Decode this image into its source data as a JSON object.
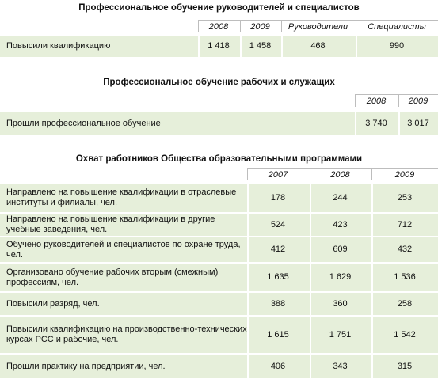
{
  "tables": [
    {
      "title": "Профессиональное обучение руководителей и специалистов",
      "headers": [
        "2008",
        "2009",
        "Руководители",
        "Специалисты"
      ],
      "rows": [
        {
          "label": "Повысили квалификацию",
          "values": [
            "1 418",
            "1 458",
            "468",
            "990"
          ]
        }
      ]
    },
    {
      "title": "Профессиональное обучение рабочих и служащих",
      "headers": [
        "2008",
        "2009"
      ],
      "rows": [
        {
          "label": "Прошли профессиональное обучение",
          "values": [
            "3 740",
            "3 017"
          ]
        }
      ]
    },
    {
      "title": "Охват работников Общества образовательными программами",
      "headers": [
        "2007",
        "2008",
        "2009"
      ],
      "rows": [
        {
          "label": "Направлено на повышение квалификации в отраслевые институты и филиалы, чел.",
          "values": [
            "178",
            "244",
            "253"
          ]
        },
        {
          "label": "Направлено на повышение квалификации в другие учебные заведения, чел.",
          "values": [
            "524",
            "423",
            "712"
          ]
        },
        {
          "label": "Обучено руководителей и специалистов по охране труда, чел.",
          "values": [
            "412",
            "609",
            "432"
          ]
        },
        {
          "label": "Организовано обучение рабочих вторым (смежным) профессиям, чел.",
          "values": [
            "1 635",
            "1 629",
            "1 536"
          ]
        },
        {
          "label": "Повысили разряд, чел.",
          "values": [
            "388",
            "360",
            "258"
          ]
        },
        {
          "label": "Повысили квалификацию на производственно-технических курсах РСС и рабочие, чел.",
          "values": [
            "1 615",
            "1 751",
            "1 542"
          ]
        },
        {
          "label": "Прошли практику на предприятии, чел.",
          "values": [
            "406",
            "343",
            "315"
          ]
        }
      ]
    }
  ]
}
